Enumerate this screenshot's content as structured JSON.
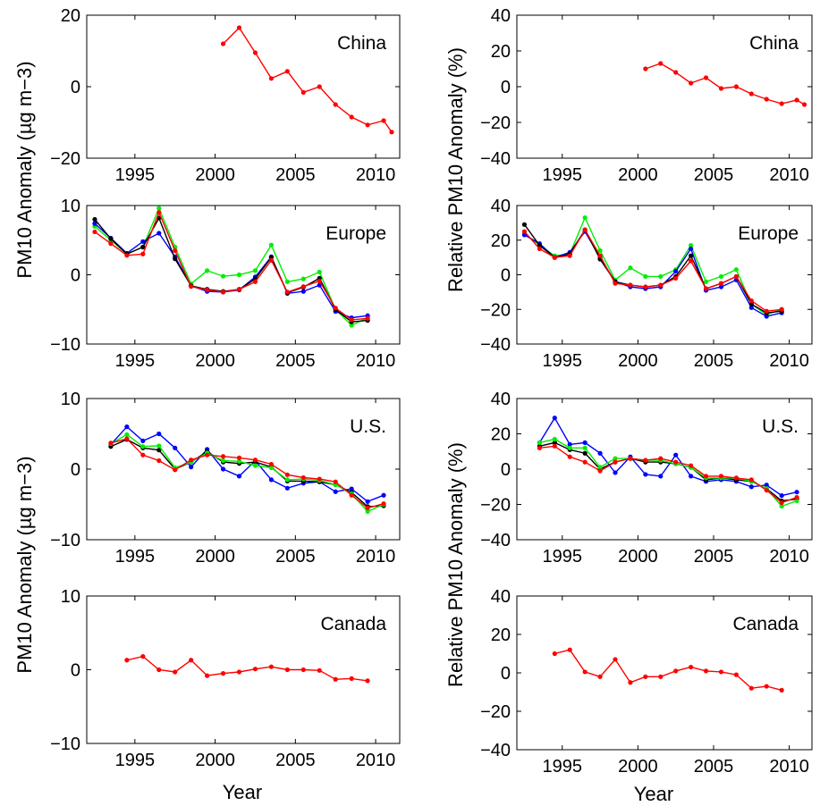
{
  "colors": {
    "red": "#ff0000",
    "green": "#00ee00",
    "blue": "#0000ff",
    "black": "#000000"
  },
  "figure": {
    "left_ylabel": "PM10 Anomaly (µg m−3)",
    "right_ylabel": "Relative PM10 Anomaly (%)",
    "xlabel": "Year"
  },
  "chart_data": [
    {
      "type": "line",
      "title": "China",
      "xlabel": "",
      "ylabel": "PM10 Anomaly (µg m−3)",
      "xlim": [
        1992,
        2011.5
      ],
      "ylim": [
        -20,
        20
      ],
      "xticks": [
        1995,
        2000,
        2005,
        2010
      ],
      "yticks": [
        -20,
        0,
        20
      ],
      "series": [
        {
          "color": "red",
          "x": [
            2000.5,
            2001.5,
            2002.5,
            2003.5,
            2004.5,
            2005.5,
            2006.5,
            2007.5,
            2008.5,
            2009.5,
            2010.5,
            2011
          ],
          "y": [
            12,
            16.5,
            9.5,
            2.3,
            4.3,
            -1.6,
            0,
            -5,
            -8.5,
            -10.7,
            -9.5,
            -12.7
          ]
        }
      ]
    },
    {
      "type": "line",
      "title": "China",
      "xlabel": "",
      "ylabel": "Relative PM10 Anomaly (%)",
      "xlim": [
        1992,
        2011.5
      ],
      "ylim": [
        -40,
        40
      ],
      "xticks": [
        1995,
        2000,
        2005,
        2010
      ],
      "yticks": [
        -40,
        -20,
        0,
        20,
        40
      ],
      "series": [
        {
          "color": "red",
          "x": [
            2000.5,
            2001.5,
            2002.5,
            2003.5,
            2004.5,
            2005.5,
            2006.5,
            2007.5,
            2008.5,
            2009.5,
            2010.5,
            2011
          ],
          "y": [
            10,
            13,
            8,
            2,
            5,
            -1,
            0,
            -4,
            -7,
            -9.5,
            -7.5,
            -10
          ]
        }
      ]
    },
    {
      "type": "line",
      "title": "Europe",
      "xlabel": "",
      "ylabel": "PM10 Anomaly (µg m−3)",
      "xlim": [
        1992,
        2011.5
      ],
      "ylim": [
        -10,
        10
      ],
      "xticks": [
        1995,
        2000,
        2005,
        2010
      ],
      "yticks": [
        -10,
        0,
        10
      ],
      "series": [
        {
          "color": "green",
          "x": [
            1992.5,
            1993.5,
            1994.5,
            1995.5,
            1996.5,
            1997.5,
            1998.5,
            1999.5,
            2000.5,
            2001.5,
            2002.5,
            2003.5,
            2004.5,
            2005.5,
            2006.5,
            2007.5,
            2008.5,
            2009.5
          ],
          "y": [
            7,
            5,
            3,
            4,
            9.6,
            4,
            -1.3,
            0.6,
            -0.2,
            0,
            0.6,
            4.3,
            -1,
            -0.6,
            0.4,
            -5,
            -7.3,
            -6.2
          ]
        },
        {
          "color": "blue",
          "x": [
            1992.5,
            1993.5,
            1994.5,
            1995.5,
            1996.5,
            1997.5,
            1998.5,
            1999.5,
            2000.5,
            2001.5,
            2002.5,
            2003.5,
            2004.5,
            2005.5,
            2006.5,
            2007.5,
            2008.5,
            2009.5
          ],
          "y": [
            7.4,
            5.3,
            3.1,
            4.8,
            6,
            2.6,
            -1.6,
            -2.4,
            -2.5,
            -2.2,
            -0.3,
            2.6,
            -2.7,
            -2.4,
            -1.5,
            -5.3,
            -6.2,
            -5.9
          ]
        },
        {
          "color": "black",
          "x": [
            1992.5,
            1993.5,
            1994.5,
            1995.5,
            1996.5,
            1997.5,
            1998.5,
            1999.5,
            2000.5,
            2001.5,
            2002.5,
            2003.5,
            2004.5,
            2005.5,
            2006.5,
            2007.5,
            2008.5,
            2009.5
          ],
          "y": [
            8,
            5.2,
            3,
            4,
            8.2,
            2.3,
            -1.6,
            -2.1,
            -2.4,
            -2.1,
            -0.6,
            2.5,
            -2.6,
            -1.8,
            -0.5,
            -5,
            -6.8,
            -6.6
          ]
        },
        {
          "color": "red",
          "x": [
            1992.5,
            1993.5,
            1994.5,
            1995.5,
            1996.5,
            1997.5,
            1998.5,
            1999.5,
            2000.5,
            2001.5,
            2002.5,
            2003.5,
            2004.5,
            2005.5,
            2006.5,
            2007.5,
            2008.5,
            2009.5
          ],
          "y": [
            6.2,
            4.5,
            2.8,
            3,
            9,
            3.5,
            -1.7,
            -2.2,
            -2.5,
            -2.1,
            -1,
            2.1,
            -2.5,
            -1.7,
            -0.9,
            -4.8,
            -6.5,
            -6.3
          ]
        }
      ]
    },
    {
      "type": "line",
      "title": "Europe",
      "xlabel": "",
      "ylabel": "Relative PM10 Anomaly (%)",
      "xlim": [
        1992,
        2011.5
      ],
      "ylim": [
        -40,
        40
      ],
      "xticks": [
        1995,
        2000,
        2005,
        2010
      ],
      "yticks": [
        -40,
        -20,
        0,
        20,
        40
      ],
      "series": [
        {
          "color": "green",
          "x": [
            1992.5,
            1993.5,
            1994.5,
            1995.5,
            1996.5,
            1997.5,
            1998.5,
            1999.5,
            2000.5,
            2001.5,
            2002.5,
            2003.5,
            2004.5,
            2005.5,
            2006.5,
            2007.5,
            2008.5,
            2009.5
          ],
          "y": [
            24,
            17,
            11,
            12,
            33,
            14,
            -3,
            4,
            -1,
            -1,
            3,
            17,
            -4,
            -1,
            3,
            -17,
            -23,
            -20
          ]
        },
        {
          "color": "blue",
          "x": [
            1992.5,
            1993.5,
            1994.5,
            1995.5,
            1996.5,
            1997.5,
            1998.5,
            1999.5,
            2000.5,
            2001.5,
            2002.5,
            2003.5,
            2004.5,
            2005.5,
            2006.5,
            2007.5,
            2008.5,
            2009.5
          ],
          "y": [
            23,
            18,
            10,
            13,
            25,
            10,
            -4,
            -7,
            -8,
            -7,
            2,
            15,
            -9,
            -7,
            -3,
            -19,
            -24,
            -22
          ]
        },
        {
          "color": "black",
          "x": [
            1992.5,
            1993.5,
            1994.5,
            1995.5,
            1996.5,
            1997.5,
            1998.5,
            1999.5,
            2000.5,
            2001.5,
            2002.5,
            2003.5,
            2004.5,
            2005.5,
            2006.5,
            2007.5,
            2008.5,
            2009.5
          ],
          "y": [
            29,
            17,
            10,
            12,
            26,
            9,
            -4,
            -6,
            -7,
            -6,
            -1,
            11,
            -8,
            -5,
            -1,
            -17,
            -22,
            -21
          ]
        },
        {
          "color": "red",
          "x": [
            1992.5,
            1993.5,
            1994.5,
            1995.5,
            1996.5,
            1997.5,
            1998.5,
            1999.5,
            2000.5,
            2001.5,
            2002.5,
            2003.5,
            2004.5,
            2005.5,
            2006.5,
            2007.5,
            2008.5,
            2009.5
          ],
          "y": [
            25,
            15,
            10,
            11,
            26,
            11,
            -5,
            -6,
            -7,
            -6,
            -2,
            8,
            -8,
            -5,
            -1,
            -15,
            -21,
            -20
          ]
        }
      ]
    },
    {
      "type": "line",
      "title": "U.S.",
      "xlabel": "",
      "ylabel": "PM10 Anomaly (µg m−3)",
      "xlim": [
        1992,
        2011.5
      ],
      "ylim": [
        -10,
        10
      ],
      "xticks": [
        1995,
        2000,
        2005,
        2010
      ],
      "yticks": [
        -10,
        0,
        10
      ],
      "series": [
        {
          "color": "blue",
          "x": [
            1993.5,
            1994.5,
            1995.5,
            1996.5,
            1997.5,
            1998.5,
            1999.5,
            2000.5,
            2001.5,
            2002.5,
            2003.5,
            2004.5,
            2005.5,
            2006.5,
            2007.5,
            2008.5,
            2009.5,
            2010.5
          ],
          "y": [
            3.5,
            6,
            4,
            5,
            3,
            0.3,
            2.8,
            0,
            -1,
            1.2,
            -1.5,
            -2.7,
            -2,
            -1.8,
            -3.2,
            -2.8,
            -4.6,
            -3.7
          ]
        },
        {
          "color": "black",
          "x": [
            1993.5,
            1994.5,
            1995.5,
            1996.5,
            1997.5,
            1998.5,
            1999.5,
            2000.5,
            2001.5,
            2002.5,
            2003.5,
            2004.5,
            2005.5,
            2006.5,
            2007.5,
            2008.5,
            2009.5,
            2010.5
          ],
          "y": [
            3.2,
            4.2,
            3,
            2.7,
            0,
            1,
            2.5,
            1,
            0.8,
            1,
            0.3,
            -1.7,
            -1.7,
            -1.8,
            -2.2,
            -3.3,
            -5.3,
            -5.2
          ]
        },
        {
          "color": "green",
          "x": [
            1993.5,
            1994.5,
            1995.5,
            1996.5,
            1997.5,
            1998.5,
            1999.5,
            2000.5,
            2001.5,
            2002.5,
            2003.5,
            2004.5,
            2005.5,
            2006.5,
            2007.5,
            2008.5,
            2009.5,
            2010.5
          ],
          "y": [
            3.6,
            4.9,
            3.2,
            3.3,
            0.2,
            1,
            2.3,
            1.2,
            1.1,
            0.5,
            0.2,
            -1.5,
            -1.4,
            -1.6,
            -2.2,
            -3.5,
            -6,
            -5
          ]
        },
        {
          "color": "red",
          "x": [
            1993.5,
            1994.5,
            1995.5,
            1996.5,
            1997.5,
            1998.5,
            1999.5,
            2000.5,
            2001.5,
            2002.5,
            2003.5,
            2004.5,
            2005.5,
            2006.5,
            2007.5,
            2008.5,
            2009.5,
            2010.5
          ],
          "y": [
            3.7,
            4.3,
            2,
            1.2,
            -0.1,
            1.3,
            2,
            1.8,
            1.6,
            1.3,
            0.7,
            -0.8,
            -1.2,
            -1.4,
            -1.8,
            -3.7,
            -5.5,
            -4.9
          ]
        }
      ]
    },
    {
      "type": "line",
      "title": "U.S.",
      "xlabel": "",
      "ylabel": "Relative PM10 Anomaly (%)",
      "xlim": [
        1992,
        2011.5
      ],
      "ylim": [
        -40,
        40
      ],
      "xticks": [
        1995,
        2000,
        2005,
        2010
      ],
      "yticks": [
        -40,
        -20,
        0,
        20,
        40
      ],
      "series": [
        {
          "color": "blue",
          "x": [
            1993.5,
            1994.5,
            1995.5,
            1996.5,
            1997.5,
            1998.5,
            1999.5,
            2000.5,
            2001.5,
            2002.5,
            2003.5,
            2004.5,
            2005.5,
            2006.5,
            2007.5,
            2008.5,
            2009.5,
            2010.5
          ],
          "y": [
            15,
            29,
            14,
            15,
            9,
            -2,
            7,
            -3,
            -4,
            8,
            -4,
            -7,
            -6,
            -7,
            -10,
            -9,
            -15,
            -13
          ]
        },
        {
          "color": "black",
          "x": [
            1993.5,
            1994.5,
            1995.5,
            1996.5,
            1997.5,
            1998.5,
            1999.5,
            2000.5,
            2001.5,
            2002.5,
            2003.5,
            2004.5,
            2005.5,
            2006.5,
            2007.5,
            2008.5,
            2009.5,
            2010.5
          ],
          "y": [
            13,
            15,
            11,
            9,
            0,
            4,
            6,
            4,
            4,
            3,
            1,
            -6,
            -5,
            -6,
            -7,
            -11,
            -18,
            -17
          ]
        },
        {
          "color": "green",
          "x": [
            1993.5,
            1994.5,
            1995.5,
            1996.5,
            1997.5,
            1998.5,
            1999.5,
            2000.5,
            2001.5,
            2002.5,
            2003.5,
            2004.5,
            2005.5,
            2006.5,
            2007.5,
            2008.5,
            2009.5,
            2010.5
          ],
          "y": [
            15,
            17,
            12,
            12,
            1,
            6,
            6,
            5,
            5,
            3,
            1,
            -5,
            -5,
            -5,
            -7,
            -11,
            -21,
            -18
          ]
        },
        {
          "color": "red",
          "x": [
            1993.5,
            1994.5,
            1995.5,
            1996.5,
            1997.5,
            1998.5,
            1999.5,
            2000.5,
            2001.5,
            2002.5,
            2003.5,
            2004.5,
            2005.5,
            2006.5,
            2007.5,
            2008.5,
            2009.5,
            2010.5
          ],
          "y": [
            12,
            13,
            7,
            4,
            -1,
            4,
            6,
            5,
            6,
            4,
            2,
            -4,
            -4,
            -5,
            -6,
            -12,
            -19,
            -16
          ]
        }
      ]
    },
    {
      "type": "line",
      "title": "Canada",
      "xlabel": "Year",
      "ylabel": "PM10 Anomaly (µg m−3)",
      "xlim": [
        1992,
        2011.5
      ],
      "ylim": [
        -10,
        10
      ],
      "xticks": [
        1995,
        2000,
        2005,
        2010
      ],
      "yticks": [
        -10,
        0,
        10
      ],
      "series": [
        {
          "color": "red",
          "x": [
            1994.5,
            1995.5,
            1996.5,
            1997.5,
            1998.5,
            1999.5,
            2000.5,
            2001.5,
            2002.5,
            2003.5,
            2004.5,
            2005.5,
            2006.5,
            2007.5,
            2008.5,
            2009.5
          ],
          "y": [
            1.3,
            1.8,
            0,
            -0.3,
            1.3,
            -0.8,
            -0.5,
            -0.3,
            0.1,
            0.4,
            0,
            0,
            -0.1,
            -1.3,
            -1.2,
            -1.5
          ]
        }
      ]
    },
    {
      "type": "line",
      "title": "Canada",
      "xlabel": "Year",
      "ylabel": "Relative PM10 Anomaly (%)",
      "xlim": [
        1992,
        2011.5
      ],
      "ylim": [
        -40,
        40
      ],
      "xticks": [
        1995,
        2000,
        2005,
        2010
      ],
      "yticks": [
        -40,
        -20,
        0,
        20,
        40
      ],
      "series": [
        {
          "color": "red",
          "x": [
            1994.5,
            1995.5,
            1996.5,
            1997.5,
            1998.5,
            1999.5,
            2000.5,
            2001.5,
            2002.5,
            2003.5,
            2004.5,
            2005.5,
            2006.5,
            2007.5,
            2008.5,
            2009.5
          ],
          "y": [
            10,
            12,
            0.5,
            -2,
            7,
            -5,
            -2,
            -2,
            1,
            3,
            1,
            0.5,
            -1,
            -8,
            -7,
            -9
          ]
        }
      ]
    }
  ]
}
